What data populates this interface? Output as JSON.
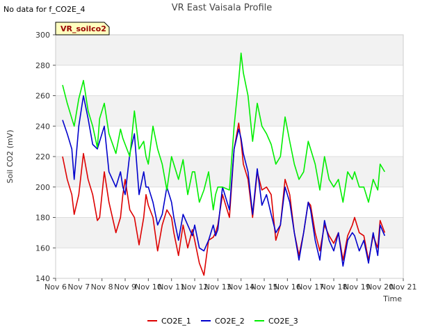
{
  "chart_data": {
    "type": "line",
    "title": "VR East Vaisala Profile",
    "note": "No data for f_CO2E_4",
    "badge": "VR_soilco2",
    "xlabel": "Time",
    "ylabel": "Soil CO2 (mV)",
    "xlim": [
      6,
      21
    ],
    "ylim": [
      140,
      300
    ],
    "x_ticks": [
      6,
      7,
      8,
      9,
      10,
      11,
      12,
      13,
      14,
      15,
      16,
      17,
      18,
      19,
      20,
      21
    ],
    "x_tick_labels": [
      "Nov 6",
      "Nov 7",
      "Nov 8",
      "Nov 9",
      "Nov 10",
      "Nov 11",
      "Nov 12",
      "Nov 13",
      "Nov 14",
      "Nov 15",
      "Nov 16",
      "Nov 17",
      "Nov 18",
      "Nov 19",
      "Nov 20",
      "Nov 21"
    ],
    "y_ticks": [
      140,
      160,
      180,
      200,
      220,
      240,
      260,
      280,
      300
    ],
    "y_tick_labels": [
      "140",
      "160",
      "180",
      "200",
      "220",
      "240",
      "260",
      "280",
      "300"
    ],
    "grid": true,
    "series": [
      {
        "name": "CO2E_1",
        "color": "#dd0000",
        "x": [
          6.3,
          6.5,
          6.7,
          6.8,
          7.0,
          7.2,
          7.4,
          7.6,
          7.8,
          7.9,
          8.1,
          8.3,
          8.6,
          8.8,
          8.9,
          9.0,
          9.2,
          9.4,
          9.6,
          9.8,
          9.9,
          10.0,
          10.2,
          10.4,
          10.6,
          10.8,
          11.0,
          11.1,
          11.3,
          11.5,
          11.7,
          11.9,
          12.0,
          12.2,
          12.4,
          12.6,
          12.8,
          12.9,
          13.0,
          13.2,
          13.5,
          13.7,
          13.9,
          14.0,
          14.1,
          14.3,
          14.5,
          14.7,
          14.9,
          15.1,
          15.3,
          15.5,
          15.7,
          15.9,
          16.1,
          16.3,
          16.5,
          16.7,
          16.9,
          17.0,
          17.2,
          17.4,
          17.6,
          17.8,
          18.0,
          18.2,
          18.4,
          18.6,
          18.8,
          18.9,
          19.1,
          19.3,
          19.5,
          19.7,
          19.9,
          20.0,
          20.2
        ],
        "values": [
          220,
          205,
          195,
          182,
          195,
          222,
          205,
          195,
          178,
          180,
          210,
          190,
          170,
          180,
          195,
          205,
          185,
          180,
          162,
          180,
          195,
          188,
          180,
          158,
          175,
          185,
          180,
          170,
          155,
          175,
          160,
          172,
          165,
          150,
          142,
          165,
          167,
          170,
          175,
          195,
          180,
          225,
          242,
          230,
          215,
          205,
          180,
          210,
          198,
          200,
          195,
          165,
          175,
          205,
          195,
          170,
          155,
          170,
          190,
          188,
          170,
          158,
          175,
          168,
          163,
          170,
          152,
          168,
          175,
          180,
          170,
          168,
          152,
          168,
          160,
          178,
          170
        ]
      },
      {
        "name": "CO2E_2",
        "color": "#0000cc",
        "x": [
          6.3,
          6.5,
          6.7,
          6.8,
          7.0,
          7.2,
          7.4,
          7.6,
          7.8,
          7.9,
          8.1,
          8.3,
          8.6,
          8.8,
          8.9,
          9.0,
          9.2,
          9.4,
          9.6,
          9.8,
          9.9,
          10.0,
          10.2,
          10.4,
          10.6,
          10.8,
          11.0,
          11.1,
          11.3,
          11.5,
          11.7,
          11.9,
          12.0,
          12.2,
          12.4,
          12.6,
          12.8,
          12.9,
          13.0,
          13.2,
          13.5,
          13.7,
          13.9,
          14.0,
          14.1,
          14.3,
          14.5,
          14.7,
          14.9,
          15.1,
          15.3,
          15.5,
          15.7,
          15.9,
          16.1,
          16.3,
          16.5,
          16.7,
          16.9,
          17.0,
          17.2,
          17.4,
          17.6,
          17.8,
          18.0,
          18.2,
          18.4,
          18.6,
          18.8,
          18.9,
          19.1,
          19.3,
          19.5,
          19.7,
          19.9,
          20.0,
          20.2
        ],
        "values": [
          244,
          235,
          225,
          205,
          240,
          260,
          245,
          228,
          225,
          230,
          240,
          210,
          200,
          210,
          200,
          195,
          222,
          235,
          195,
          210,
          200,
          200,
          190,
          175,
          182,
          200,
          190,
          180,
          165,
          182,
          175,
          168,
          175,
          160,
          158,
          165,
          175,
          168,
          172,
          200,
          185,
          225,
          238,
          232,
          222,
          210,
          182,
          212,
          188,
          195,
          182,
          170,
          175,
          200,
          190,
          170,
          152,
          170,
          190,
          185,
          165,
          152,
          178,
          165,
          158,
          170,
          148,
          165,
          170,
          168,
          158,
          165,
          150,
          170,
          155,
          175,
          168
        ]
      },
      {
        "name": "CO2E_3",
        "color": "#00ee00",
        "x": [
          6.3,
          6.5,
          6.7,
          6.8,
          7.0,
          7.2,
          7.4,
          7.6,
          7.8,
          7.9,
          8.1,
          8.3,
          8.6,
          8.8,
          8.9,
          9.0,
          9.2,
          9.4,
          9.6,
          9.8,
          9.9,
          10.0,
          10.2,
          10.4,
          10.6,
          10.8,
          11.0,
          11.1,
          11.3,
          11.5,
          11.7,
          11.9,
          12.0,
          12.2,
          12.4,
          12.6,
          12.8,
          12.9,
          13.0,
          13.2,
          13.5,
          13.7,
          13.9,
          14.0,
          14.1,
          14.3,
          14.5,
          14.7,
          14.9,
          15.1,
          15.3,
          15.5,
          15.7,
          15.9,
          16.1,
          16.3,
          16.5,
          16.7,
          16.9,
          17.0,
          17.2,
          17.4,
          17.6,
          17.8,
          18.0,
          18.2,
          18.4,
          18.6,
          18.8,
          18.9,
          19.1,
          19.3,
          19.5,
          19.7,
          19.9,
          20.0,
          20.2
        ],
        "values": [
          267,
          255,
          245,
          240,
          258,
          270,
          250,
          240,
          226,
          245,
          255,
          235,
          222,
          238,
          232,
          228,
          220,
          250,
          225,
          230,
          220,
          215,
          240,
          225,
          215,
          198,
          220,
          215,
          205,
          218,
          195,
          210,
          210,
          190,
          198,
          210,
          185,
          195,
          200,
          200,
          198,
          240,
          270,
          288,
          275,
          260,
          230,
          255,
          240,
          235,
          228,
          215,
          220,
          246,
          230,
          215,
          205,
          210,
          230,
          225,
          215,
          198,
          220,
          205,
          200,
          205,
          190,
          210,
          205,
          210,
          200,
          200,
          190,
          205,
          198,
          215,
          210
        ]
      }
    ]
  }
}
